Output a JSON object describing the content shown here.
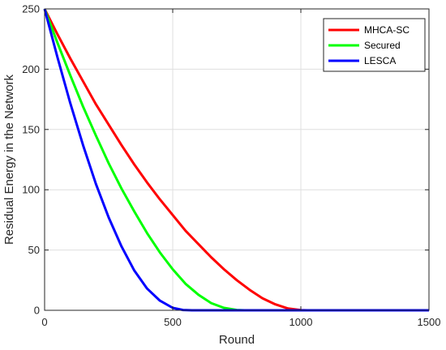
{
  "chart_data": {
    "type": "line",
    "title": "",
    "xlabel": "Round",
    "ylabel": "Residual Energy in the Network",
    "xlim": [
      0,
      1500
    ],
    "ylim": [
      0,
      250
    ],
    "xticks": [
      "0",
      "500",
      "1000",
      "1500"
    ],
    "yticks": [
      "0",
      "50",
      "100",
      "150",
      "200",
      "250"
    ],
    "grid": true,
    "legend_position": "top-right",
    "series": [
      {
        "name": "MHCA-SC",
        "color": "#ff0000",
        "x": [
          0,
          50,
          100,
          150,
          200,
          250,
          300,
          350,
          400,
          450,
          500,
          550,
          600,
          650,
          700,
          750,
          800,
          850,
          900,
          950,
          1000,
          1025,
          1500
        ],
        "y": [
          250,
          229,
          209,
          190,
          171,
          154,
          137,
          121,
          106,
          92,
          79,
          66,
          55,
          44,
          34,
          25,
          17,
          10,
          5,
          1.5,
          0.2,
          0,
          0
        ]
      },
      {
        "name": "Secured",
        "color": "#00ff00",
        "x": [
          0,
          50,
          100,
          150,
          200,
          250,
          300,
          350,
          400,
          450,
          500,
          550,
          600,
          650,
          700,
          750,
          780,
          1500
        ],
        "y": [
          250,
          222,
          195,
          169,
          145,
          122,
          101,
          82,
          64,
          48,
          34,
          22,
          13,
          6,
          2,
          0.3,
          0,
          0
        ]
      },
      {
        "name": "LESCA",
        "color": "#0000ff",
        "x": [
          0,
          50,
          100,
          150,
          200,
          250,
          300,
          350,
          400,
          450,
          500,
          540,
          575,
          1500
        ],
        "y": [
          250,
          210,
          172,
          137,
          105,
          77,
          53,
          33,
          18,
          8,
          2,
          0.3,
          0,
          0
        ]
      }
    ]
  }
}
